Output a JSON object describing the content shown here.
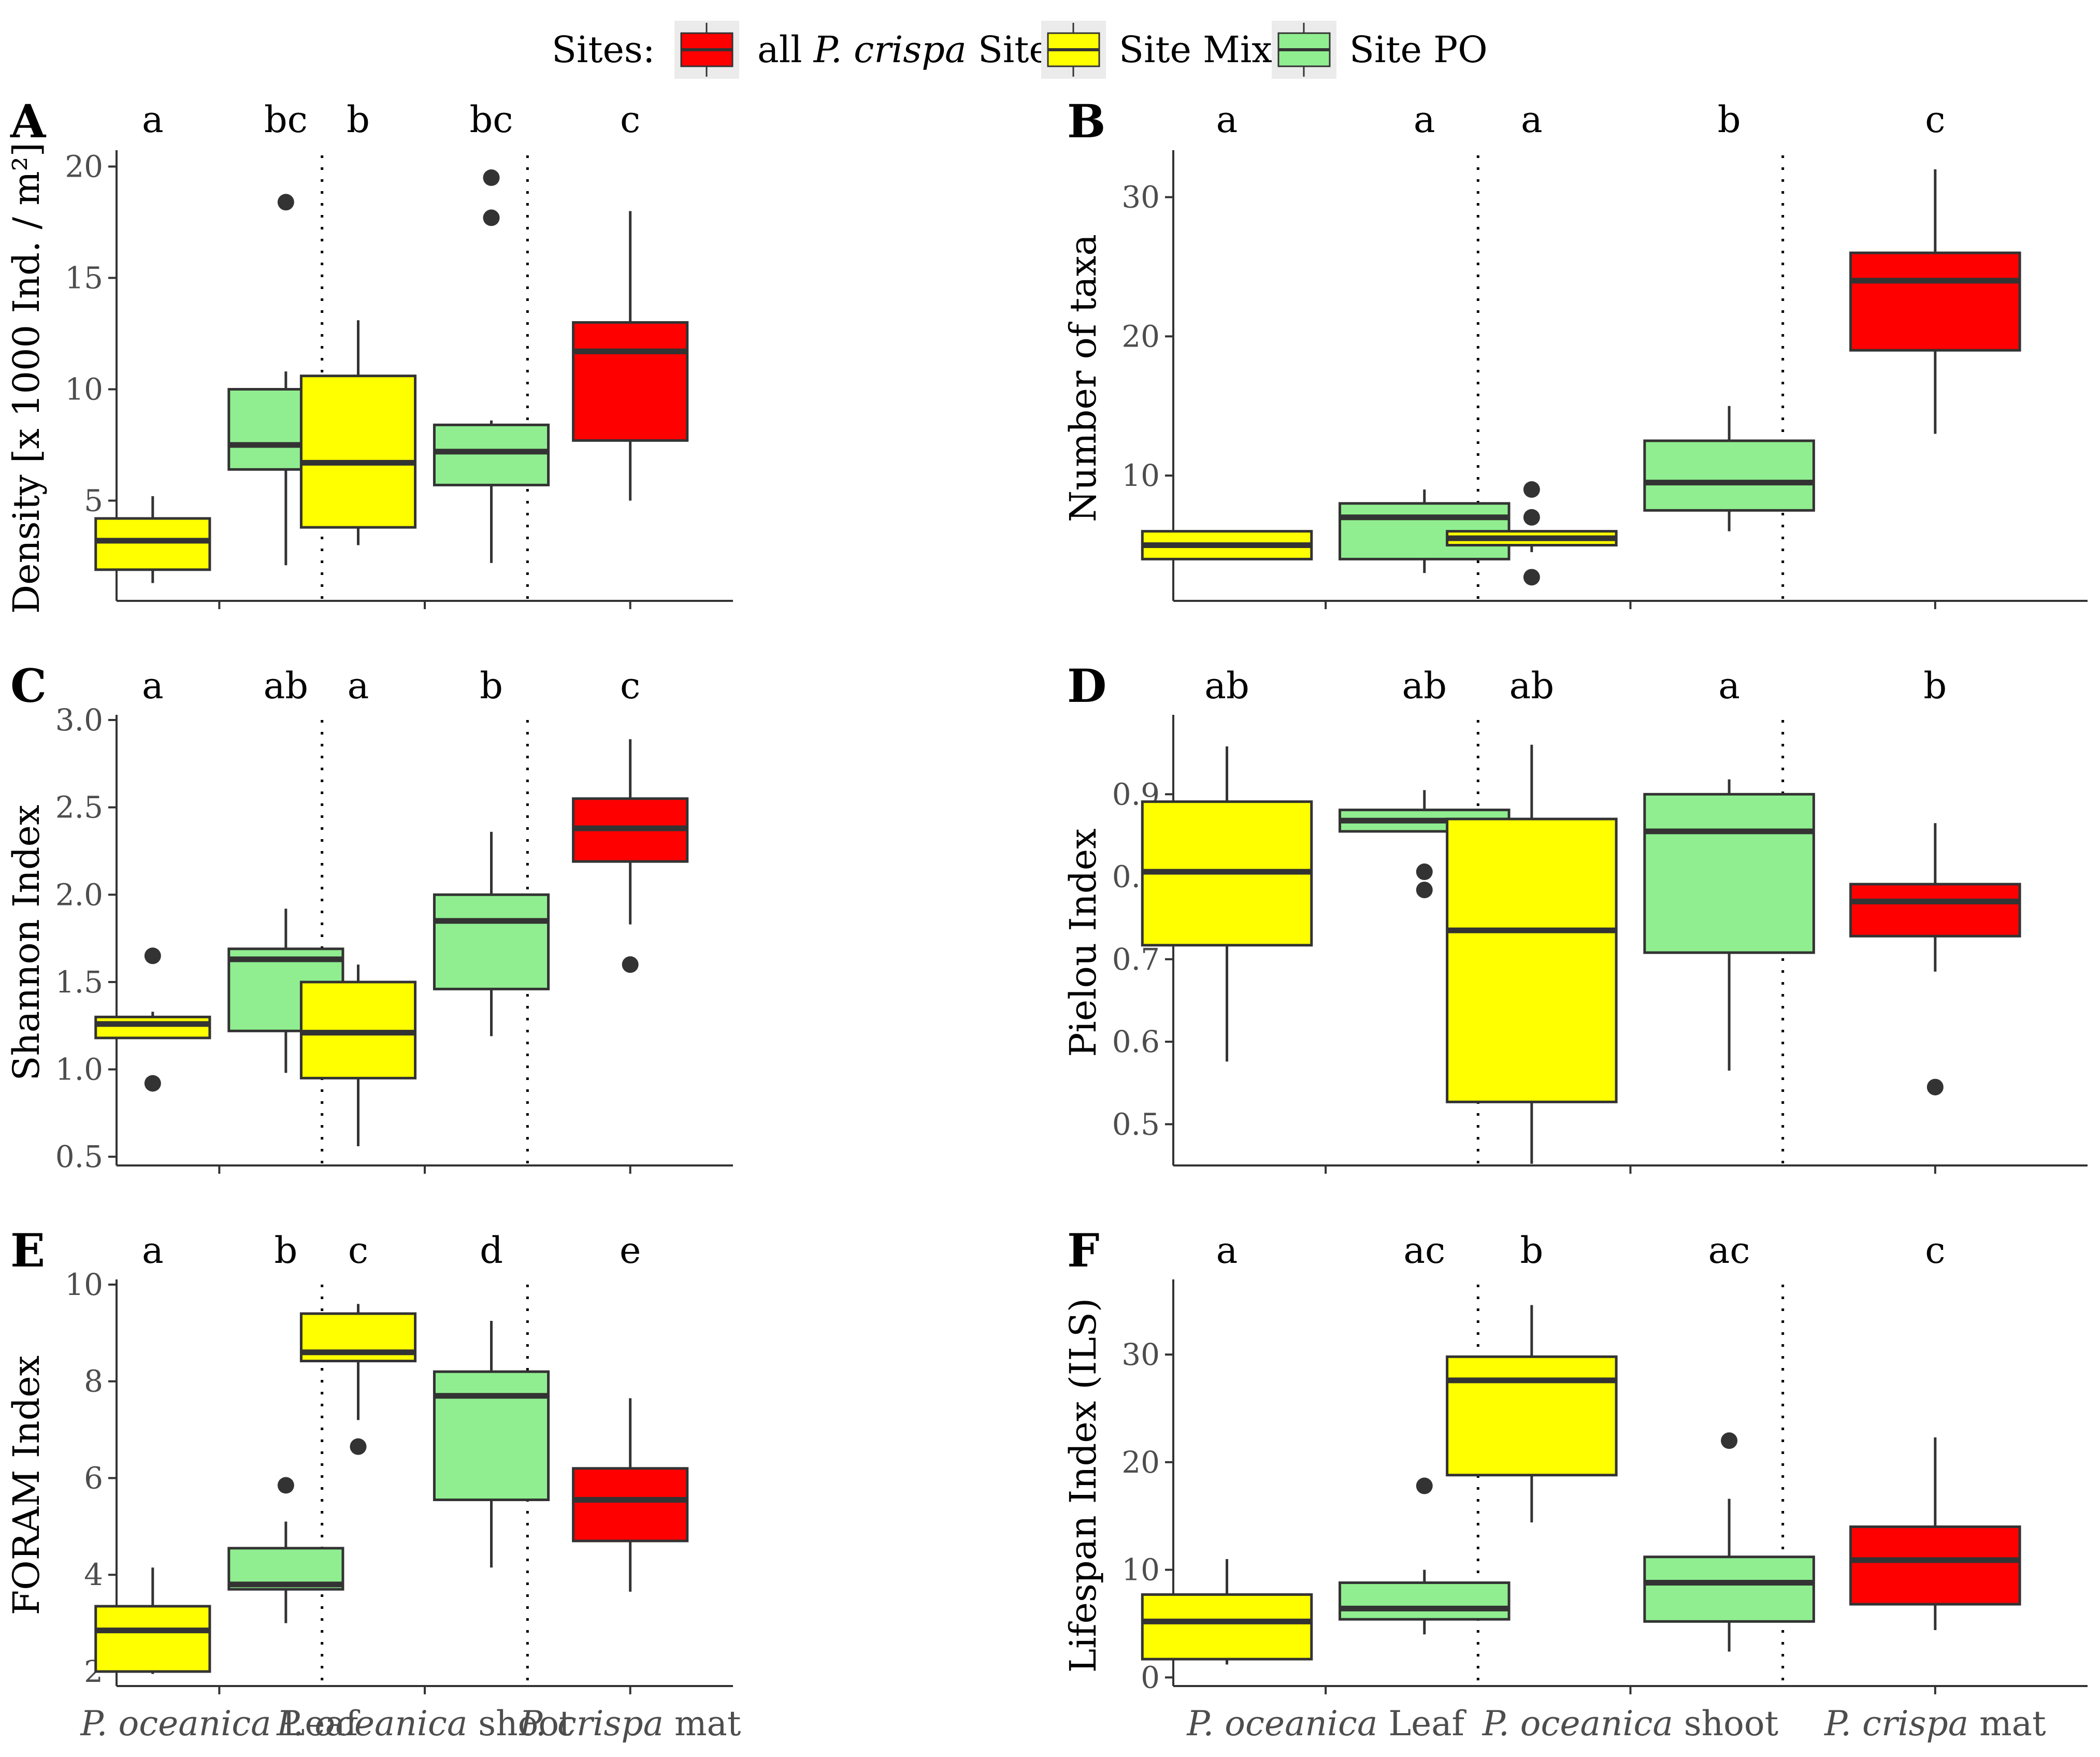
{
  "legend": {
    "title": "Sites:",
    "items": [
      {
        "name": "all P. crispa Sites",
        "italic_part": "P. crispa",
        "pre": "all ",
        "post": " Sites",
        "color": "#ff0000"
      },
      {
        "name": "Site Mix",
        "pre": "Site Mix",
        "italic_part": "",
        "post": "",
        "color": "#ffff00"
      },
      {
        "name": "Site PO",
        "pre": "Site PO",
        "italic_part": "",
        "post": "",
        "color": "#90ee90"
      }
    ]
  },
  "x_categories": [
    {
      "italic": "P. oceanica",
      "rest": " Leaf"
    },
    {
      "italic": "P. oceanica",
      "rest": " shoot"
    },
    {
      "italic": "P. crispa",
      "rest": " mat"
    }
  ],
  "colors": {
    "mix": "#ffff00",
    "po": "#90ee90",
    "crispa": "#ff0000",
    "line": "#333333",
    "axis": "#333333",
    "tick_text": "#4d4d4d"
  },
  "chart_data": [
    {
      "panel": "A",
      "type": "box",
      "ylabel": "Density [x 1000 Ind. / m²]",
      "ylim": [
        0.5,
        20.5
      ],
      "yticks": [
        5,
        10,
        15,
        20
      ],
      "boxes": [
        {
          "group": 0,
          "site": "mix",
          "letter": "a",
          "q1": 1.9,
          "median": 3.2,
          "q3": 4.2,
          "whisker_low": 1.3,
          "whisker_high": 5.2,
          "outliers": []
        },
        {
          "group": 0,
          "site": "po",
          "letter": "bc",
          "q1": 6.4,
          "median": 7.5,
          "q3": 10.0,
          "whisker_low": 2.1,
          "whisker_high": 10.8,
          "outliers": [
            18.4
          ]
        },
        {
          "group": 1,
          "site": "mix",
          "letter": "b",
          "q1": 3.8,
          "median": 6.7,
          "q3": 10.6,
          "whisker_low": 3.0,
          "whisker_high": 13.1,
          "outliers": []
        },
        {
          "group": 1,
          "site": "po",
          "letter": "bc",
          "q1": 5.7,
          "median": 7.2,
          "q3": 8.4,
          "whisker_low": 2.2,
          "whisker_high": 8.6,
          "outliers": [
            19.5,
            17.7
          ]
        },
        {
          "group": 2,
          "site": "crispa",
          "letter": "c",
          "q1": 7.7,
          "median": 11.7,
          "q3": 13.0,
          "whisker_low": 5.0,
          "whisker_high": 18.0,
          "outliers": []
        }
      ]
    },
    {
      "panel": "B",
      "type": "box",
      "ylabel": "Number of taxa",
      "ylim": [
        1,
        33
      ],
      "yticks": [
        10,
        20,
        30
      ],
      "boxes": [
        {
          "group": 0,
          "site": "mix",
          "letter": "a",
          "q1": 4.0,
          "median": 5.0,
          "q3": 6.0,
          "whisker_low": 4.0,
          "whisker_high": 6.0,
          "outliers": []
        },
        {
          "group": 0,
          "site": "po",
          "letter": "a",
          "q1": 4.0,
          "median": 7.0,
          "q3": 8.0,
          "whisker_low": 3.0,
          "whisker_high": 9.0,
          "outliers": []
        },
        {
          "group": 1,
          "site": "mix",
          "letter": "a",
          "q1": 5.0,
          "median": 5.5,
          "q3": 6.0,
          "whisker_low": 4.5,
          "whisker_high": 6.0,
          "outliers": [
            9.0,
            7.0,
            2.7
          ]
        },
        {
          "group": 1,
          "site": "po",
          "letter": "b",
          "q1": 7.5,
          "median": 9.5,
          "q3": 12.5,
          "whisker_low": 6.0,
          "whisker_high": 15.0,
          "outliers": []
        },
        {
          "group": 2,
          "site": "crispa",
          "letter": "c",
          "q1": 19.0,
          "median": 24.0,
          "q3": 26.0,
          "whisker_low": 13.0,
          "whisker_high": 32.0,
          "outliers": []
        }
      ]
    },
    {
      "panel": "C",
      "type": "box",
      "ylabel": "Shannon Index",
      "ylim": [
        0.45,
        3.0
      ],
      "yticks": [
        0.5,
        1.0,
        1.5,
        2.0,
        2.5,
        3.0
      ],
      "boxes": [
        {
          "group": 0,
          "site": "mix",
          "letter": "a",
          "q1": 1.18,
          "median": 1.26,
          "q3": 1.3,
          "whisker_low": 1.18,
          "whisker_high": 1.33,
          "outliers": [
            1.65,
            0.92
          ]
        },
        {
          "group": 0,
          "site": "po",
          "letter": "ab",
          "q1": 1.22,
          "median": 1.63,
          "q3": 1.69,
          "whisker_low": 0.98,
          "whisker_high": 1.92,
          "outliers": []
        },
        {
          "group": 1,
          "site": "mix",
          "letter": "a",
          "q1": 0.95,
          "median": 1.21,
          "q3": 1.5,
          "whisker_low": 0.56,
          "whisker_high": 1.6,
          "outliers": []
        },
        {
          "group": 1,
          "site": "po",
          "letter": "b",
          "q1": 1.46,
          "median": 1.85,
          "q3": 2.0,
          "whisker_low": 1.19,
          "whisker_high": 2.36,
          "outliers": []
        },
        {
          "group": 2,
          "site": "crispa",
          "letter": "c",
          "q1": 2.19,
          "median": 2.38,
          "q3": 2.55,
          "whisker_low": 1.83,
          "whisker_high": 2.89,
          "outliers": [
            1.6
          ]
        }
      ]
    },
    {
      "panel": "D",
      "type": "box",
      "ylabel": "Pielou Index",
      "ylim": [
        0.45,
        0.99
      ],
      "yticks": [
        0.5,
        0.6,
        0.7,
        0.8,
        0.9
      ],
      "boxes": [
        {
          "group": 0,
          "site": "mix",
          "letter": "ab",
          "q1": 0.717,
          "median": 0.806,
          "q3": 0.891,
          "whisker_low": 0.576,
          "whisker_high": 0.958,
          "outliers": []
        },
        {
          "group": 0,
          "site": "po",
          "letter": "ab",
          "q1": 0.855,
          "median": 0.868,
          "q3": 0.881,
          "whisker_low": 0.855,
          "whisker_high": 0.905,
          "outliers": [
            0.806,
            0.784
          ]
        },
        {
          "group": 1,
          "site": "mix",
          "letter": "ab",
          "q1": 0.527,
          "median": 0.735,
          "q3": 0.87,
          "whisker_low": 0.452,
          "whisker_high": 0.96,
          "outliers": []
        },
        {
          "group": 1,
          "site": "po",
          "letter": "a",
          "q1": 0.708,
          "median": 0.855,
          "q3": 0.9,
          "whisker_low": 0.565,
          "whisker_high": 0.918,
          "outliers": []
        },
        {
          "group": 2,
          "site": "crispa",
          "letter": "b",
          "q1": 0.728,
          "median": 0.77,
          "q3": 0.791,
          "whisker_low": 0.685,
          "whisker_high": 0.865,
          "outliers": [
            0.545
          ]
        }
      ]
    },
    {
      "panel": "E",
      "type": "box",
      "ylabel": "FORAM Index",
      "ylim": [
        1.7,
        10.0
      ],
      "yticks": [
        2,
        4,
        6,
        8,
        10
      ],
      "boxes": [
        {
          "group": 0,
          "site": "mix",
          "letter": "a",
          "q1": 2.0,
          "median": 2.85,
          "q3": 3.35,
          "whisker_low": 1.95,
          "whisker_high": 4.15,
          "outliers": []
        },
        {
          "group": 0,
          "site": "po",
          "letter": "b",
          "q1": 3.7,
          "median": 3.8,
          "q3": 4.55,
          "whisker_low": 3.0,
          "whisker_high": 5.1,
          "outliers": [
            5.85
          ]
        },
        {
          "group": 1,
          "site": "mix",
          "letter": "c",
          "q1": 8.42,
          "median": 8.6,
          "q3": 9.4,
          "whisker_low": 7.2,
          "whisker_high": 9.6,
          "outliers": [
            6.65
          ]
        },
        {
          "group": 1,
          "site": "po",
          "letter": "d",
          "q1": 5.55,
          "median": 7.7,
          "q3": 8.2,
          "whisker_low": 4.15,
          "whisker_high": 9.25,
          "outliers": []
        },
        {
          "group": 2,
          "site": "crispa",
          "letter": "e",
          "q1": 4.7,
          "median": 5.55,
          "q3": 6.2,
          "whisker_low": 3.65,
          "whisker_high": 7.65,
          "outliers": []
        }
      ]
    },
    {
      "panel": "F",
      "type": "box",
      "ylabel": "Lifespan Index (ILS)",
      "ylim": [
        -0.8,
        36.5
      ],
      "yticks": [
        0,
        10,
        20,
        30
      ],
      "boxes": [
        {
          "group": 0,
          "site": "mix",
          "letter": "a",
          "q1": 1.7,
          "median": 5.2,
          "q3": 7.7,
          "whisker_low": 1.2,
          "whisker_high": 11.0,
          "outliers": []
        },
        {
          "group": 0,
          "site": "po",
          "letter": "ac",
          "q1": 5.4,
          "median": 6.4,
          "q3": 8.8,
          "whisker_low": 4.0,
          "whisker_high": 10.0,
          "outliers": [
            17.8
          ]
        },
        {
          "group": 1,
          "site": "mix",
          "letter": "b",
          "q1": 18.8,
          "median": 27.6,
          "q3": 29.8,
          "whisker_low": 14.4,
          "whisker_high": 34.6,
          "outliers": []
        },
        {
          "group": 1,
          "site": "po",
          "letter": "ac",
          "q1": 5.2,
          "median": 8.8,
          "q3": 11.2,
          "whisker_low": 2.4,
          "whisker_high": 16.6,
          "outliers": [
            22.0
          ]
        },
        {
          "group": 2,
          "site": "crispa",
          "letter": "c",
          "q1": 6.8,
          "median": 10.9,
          "q3": 14.0,
          "whisker_low": 4.4,
          "whisker_high": 22.3,
          "outliers": []
        }
      ]
    }
  ]
}
